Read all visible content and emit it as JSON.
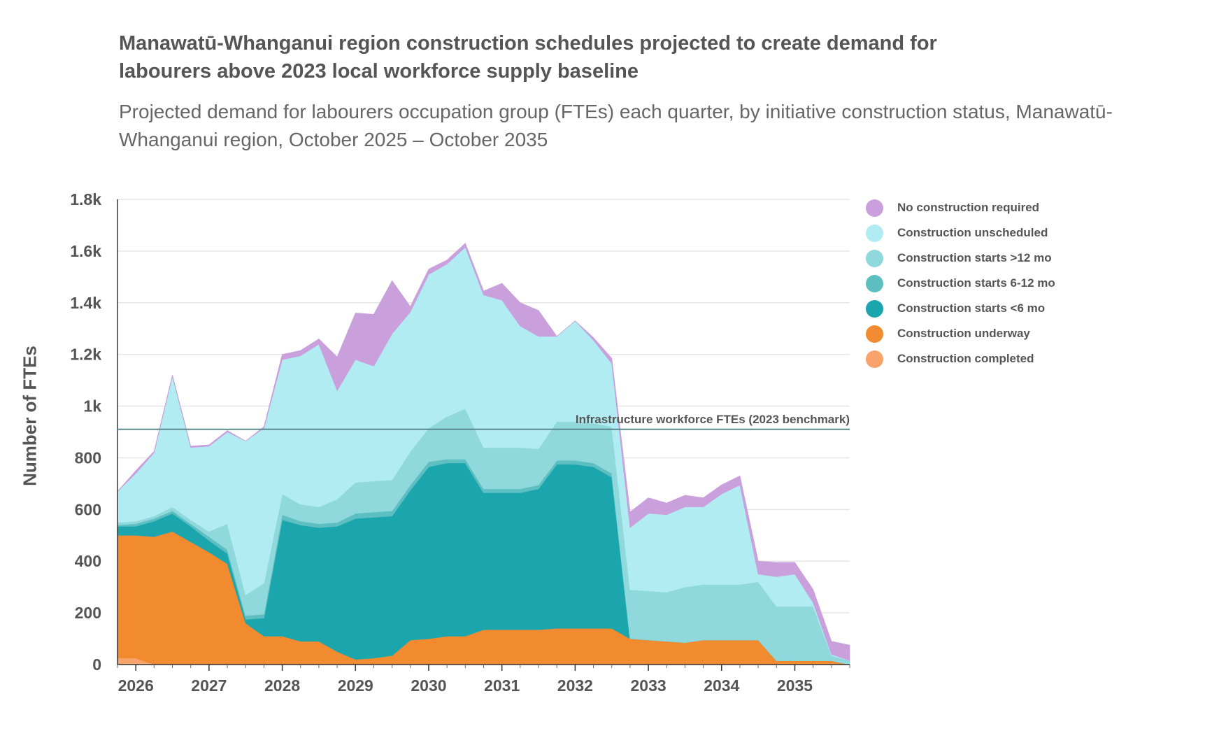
{
  "title": "Manawatū-Whanganui region construction schedules projected to create demand for labourers above 2023 local workforce supply baseline",
  "subtitle": "Projected demand for labourers occupation group (FTEs) each quarter, by initiative construction status, Manawatū-Whanganui region, October 2025 – October 2035",
  "chart_data": {
    "type": "area",
    "stacked": true,
    "title": "Manawatū-Whanganui region construction schedules projected to create demand for labourers above 2023 local workforce supply baseline",
    "ylabel": "Number of FTEs",
    "xlabel": "",
    "ylim": [
      0,
      1800
    ],
    "xlim": [
      2025.75,
      2035.75
    ],
    "y_ticks": [
      0,
      200,
      400,
      600,
      800,
      1000,
      1200,
      1400,
      1600,
      1800
    ],
    "y_tick_labels": [
      "0",
      "200",
      "400",
      "600",
      "800",
      "1k",
      "1.2k",
      "1.4k",
      "1.6k",
      "1.8k"
    ],
    "x_ticks": [
      2026,
      2027,
      2028,
      2029,
      2030,
      2031,
      2032,
      2033,
      2034,
      2035
    ],
    "x_tick_labels": [
      "2026",
      "2027",
      "2028",
      "2029",
      "2030",
      "2031",
      "2032",
      "2033",
      "2034",
      "2035"
    ],
    "x": [
      2025.75,
      2026,
      2026.25,
      2026.5,
      2026.75,
      2027,
      2027.25,
      2027.5,
      2027.75,
      2028,
      2028.25,
      2028.5,
      2028.75,
      2029,
      2029.25,
      2029.5,
      2029.75,
      2030,
      2030.25,
      2030.5,
      2030.75,
      2031,
      2031.25,
      2031.5,
      2031.75,
      2032,
      2032.25,
      2032.5,
      2032.75,
      2033,
      2033.25,
      2033.5,
      2033.75,
      2034,
      2034.25,
      2034.5,
      2034.75,
      2035,
      2035.25,
      2035.5,
      2035.75
    ],
    "series": [
      {
        "name": "Construction completed",
        "color": "#f7a36b",
        "values": [
          25,
          25,
          0,
          0,
          0,
          0,
          0,
          0,
          0,
          0,
          0,
          0,
          0,
          0,
          0,
          0,
          0,
          0,
          0,
          0,
          0,
          0,
          0,
          0,
          0,
          0,
          0,
          0,
          0,
          0,
          0,
          0,
          0,
          0,
          0,
          0,
          0,
          0,
          0,
          0,
          0
        ]
      },
      {
        "name": "Construction underway",
        "color": "#f28a30",
        "values": [
          475,
          475,
          495,
          515,
          475,
          435,
          390,
          160,
          110,
          110,
          90,
          90,
          50,
          20,
          25,
          35,
          95,
          100,
          110,
          110,
          135,
          135,
          135,
          135,
          140,
          140,
          140,
          140,
          100,
          95,
          90,
          85,
          95,
          95,
          95,
          95,
          15,
          15,
          15,
          15,
          0
        ]
      },
      {
        "name": "Construction starts <6 mo",
        "color": "#1ba6ae",
        "values": [
          35,
          35,
          60,
          70,
          60,
          45,
          40,
          15,
          70,
          450,
          450,
          440,
          485,
          545,
          545,
          540,
          580,
          665,
          670,
          670,
          530,
          530,
          530,
          545,
          635,
          635,
          625,
          585,
          0,
          0,
          0,
          0,
          0,
          0,
          0,
          0,
          0,
          0,
          0,
          0,
          0
        ]
      },
      {
        "name": "Construction starts 6-12 mo",
        "color": "#5dbfc2",
        "values": [
          5,
          10,
          10,
          10,
          10,
          15,
          15,
          15,
          15,
          20,
          15,
          15,
          15,
          20,
          20,
          20,
          20,
          20,
          15,
          15,
          15,
          15,
          15,
          15,
          15,
          15,
          15,
          15,
          0,
          0,
          0,
          0,
          0,
          0,
          0,
          0,
          0,
          0,
          0,
          0,
          0
        ]
      },
      {
        "name": "Construction starts >12 mo",
        "color": "#8fd8dc",
        "values": [
          10,
          10,
          10,
          15,
          15,
          20,
          100,
          80,
          120,
          80,
          65,
          65,
          90,
          120,
          120,
          120,
          130,
          130,
          165,
          195,
          160,
          160,
          160,
          140,
          150,
          150,
          155,
          180,
          190,
          190,
          190,
          215,
          215,
          215,
          215,
          225,
          210,
          210,
          210,
          20,
          15
        ]
      },
      {
        "name": "Construction unscheduled",
        "color": "#b0ecf1",
        "values": [
          120,
          185,
          245,
          505,
          280,
          330,
          355,
          595,
          600,
          520,
          575,
          630,
          420,
          475,
          445,
          565,
          540,
          595,
          590,
          625,
          590,
          570,
          470,
          435,
          330,
          390,
          320,
          245,
          240,
          300,
          300,
          310,
          300,
          350,
          385,
          30,
          115,
          125,
          15,
          5,
          0
        ]
      },
      {
        "name": "No construction required",
        "color": "#c9a0dc",
        "values": [
          0,
          10,
          5,
          5,
          5,
          5,
          5,
          0,
          5,
          20,
          20,
          20,
          130,
          180,
          200,
          205,
          20,
          20,
          15,
          15,
          15,
          65,
          90,
          100,
          0,
          0,
          10,
          20,
          60,
          60,
          45,
          45,
          35,
          35,
          35,
          50,
          55,
          45,
          50,
          50,
          60
        ]
      }
    ],
    "benchmark": {
      "label": "Infrastructure workforce FTEs (2023 benchmark)",
      "value": 910,
      "color": "#5a8a8f"
    },
    "legend_position": "right",
    "legend_order": [
      "No construction required",
      "Construction unscheduled",
      "Construction starts >12 mo",
      "Construction starts 6-12 mo",
      "Construction starts <6 mo",
      "Construction underway",
      "Construction completed"
    ],
    "grid": true
  }
}
